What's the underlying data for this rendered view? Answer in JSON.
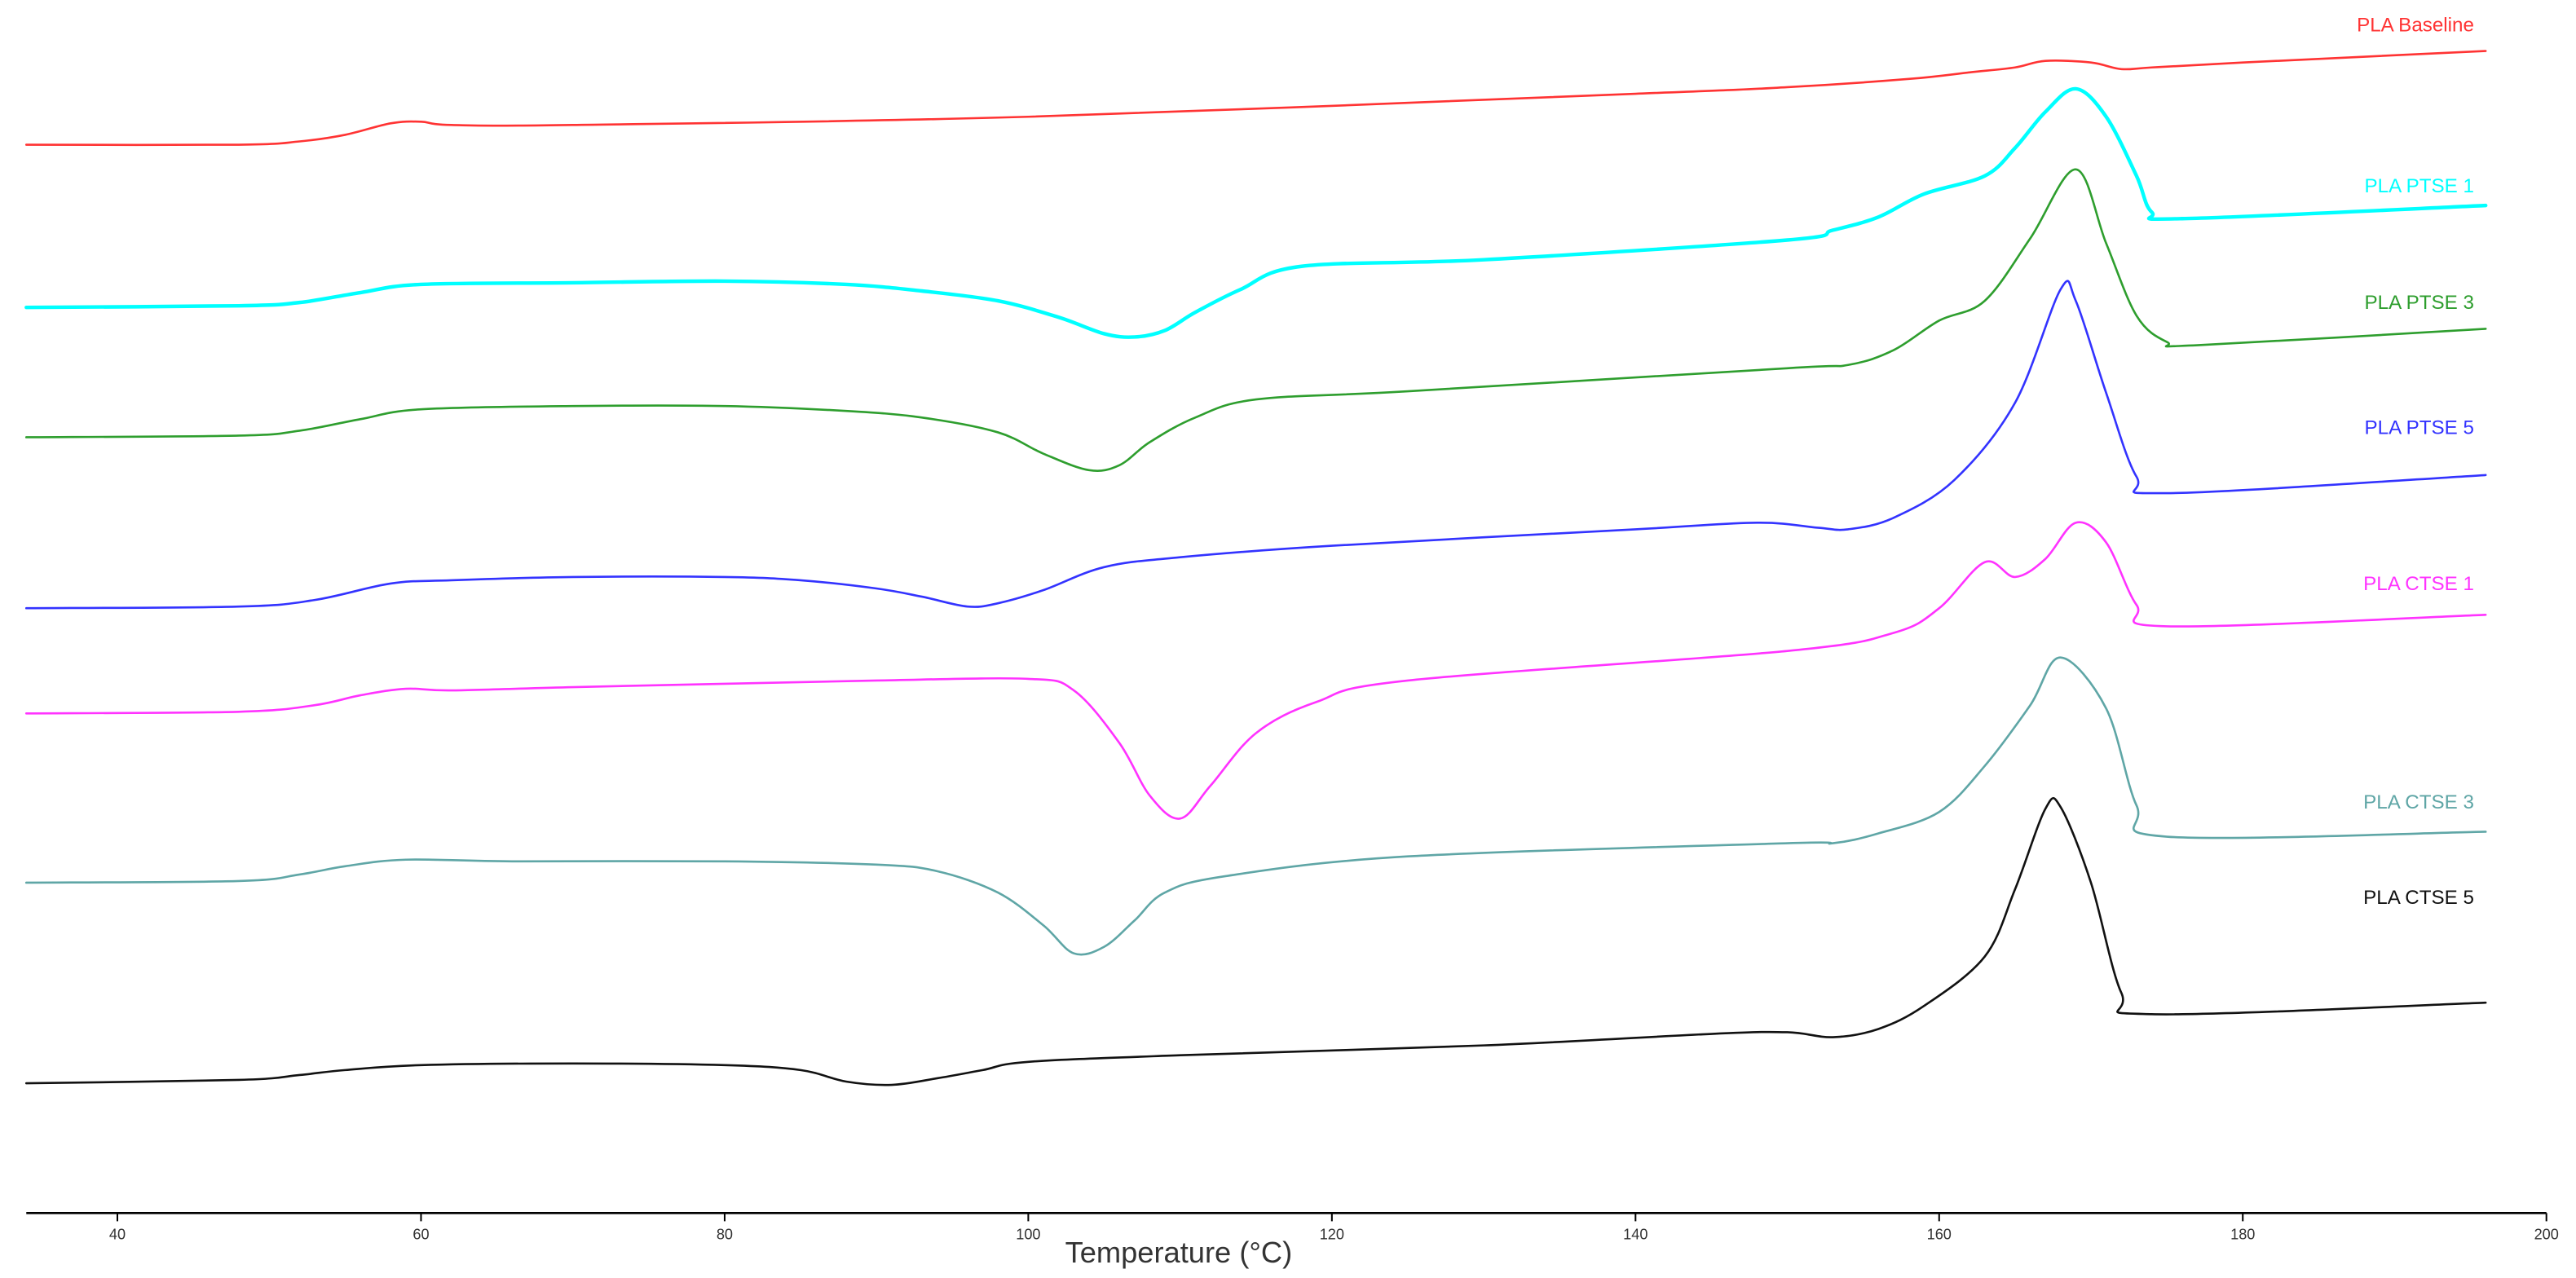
{
  "chart_data": {
    "type": "line",
    "title": "",
    "xlabel": "Temperature (°C)",
    "ylabel": "",
    "xlim": [
      34,
      200
    ],
    "xticks": [
      40,
      60,
      80,
      100,
      120,
      140,
      160,
      180,
      200
    ],
    "x_tick_labels": [
      "40",
      "60",
      "80",
      "100",
      "120",
      "140",
      "160",
      "180",
      "200"
    ],
    "grid": false,
    "legend": "inline labels at right end of each curve",
    "units": "relative heat flow (offset traces)",
    "series": [
      {
        "name": "PLA Baseline",
        "color": "#ff3333",
        "points": [
          [
            34,
            88
          ],
          [
            48,
            88
          ],
          [
            52,
            86
          ],
          [
            55,
            82
          ],
          [
            58,
            75
          ],
          [
            60,
            74
          ],
          [
            62,
            76
          ],
          [
            70,
            76
          ],
          [
            100,
            71
          ],
          [
            140,
            57
          ],
          [
            150,
            53
          ],
          [
            158,
            48
          ],
          [
            162,
            44
          ],
          [
            165,
            41
          ],
          [
            167,
            37
          ],
          [
            170,
            38
          ],
          [
            172,
            42
          ],
          [
            174,
            41
          ],
          [
            180,
            38
          ],
          [
            196,
            31
          ]
        ]
      },
      {
        "name": "PLA PTSE 1",
        "color": "#00ffff",
        "points": [
          [
            34,
            187
          ],
          [
            48,
            186
          ],
          [
            52,
            184
          ],
          [
            56,
            178
          ],
          [
            60,
            173
          ],
          [
            70,
            172
          ],
          [
            80,
            171
          ],
          [
            88,
            173
          ],
          [
            93,
            177
          ],
          [
            98,
            183
          ],
          [
            102,
            193
          ],
          [
            105,
            203
          ],
          [
            107,
            205
          ],
          [
            109,
            201
          ],
          [
            111,
            190
          ],
          [
            114,
            176
          ],
          [
            118,
            162
          ],
          [
            130,
            158
          ],
          [
            150,
            146
          ],
          [
            153,
            140
          ],
          [
            156,
            132
          ],
          [
            159,
            118
          ],
          [
            163,
            107
          ],
          [
            165,
            90
          ],
          [
            167,
            68
          ],
          [
            169,
            54
          ],
          [
            171,
            71
          ],
          [
            173,
            107
          ],
          [
            174,
            129
          ],
          [
            176,
            133
          ],
          [
            196,
            125
          ]
        ]
      },
      {
        "name": "PLA PTSE 3",
        "color": "#2e9e2e",
        "points": [
          [
            34,
            266
          ],
          [
            48,
            265
          ],
          [
            52,
            262
          ],
          [
            56,
            255
          ],
          [
            60,
            249
          ],
          [
            70,
            247
          ],
          [
            80,
            247
          ],
          [
            88,
            250
          ],
          [
            93,
            254
          ],
          [
            98,
            263
          ],
          [
            101,
            276
          ],
          [
            104,
            286
          ],
          [
            106,
            283
          ],
          [
            108,
            269
          ],
          [
            111,
            254
          ],
          [
            115,
            243
          ],
          [
            125,
            238
          ],
          [
            150,
            224
          ],
          [
            154,
            222
          ],
          [
            157,
            213
          ],
          [
            160,
            195
          ],
          [
            163,
            183
          ],
          [
            166,
            145
          ],
          [
            169,
            103
          ],
          [
            171,
            148
          ],
          [
            173,
            192
          ],
          [
            175,
            208
          ],
          [
            177,
            210
          ],
          [
            196,
            200
          ]
        ]
      },
      {
        "name": "PLA PTSE 5",
        "color": "#3333ff",
        "points": [
          [
            34,
            370
          ],
          [
            48,
            369
          ],
          [
            53,
            365
          ],
          [
            58,
            355
          ],
          [
            62,
            353
          ],
          [
            70,
            351
          ],
          [
            80,
            351
          ],
          [
            85,
            353
          ],
          [
            90,
            358
          ],
          [
            93,
            363
          ],
          [
            96,
            369
          ],
          [
            98,
            367
          ],
          [
            101,
            359
          ],
          [
            105,
            345
          ],
          [
            110,
            339
          ],
          [
            120,
            332
          ],
          [
            140,
            322
          ],
          [
            148,
            318
          ],
          [
            152,
            321
          ],
          [
            154,
            322
          ],
          [
            157,
            315
          ],
          [
            161,
            292
          ],
          [
            165,
            245
          ],
          [
            168,
            176
          ],
          [
            169,
            183
          ],
          [
            171,
            239
          ],
          [
            173,
            290
          ],
          [
            175,
            300
          ],
          [
            196,
            289
          ]
        ]
      },
      {
        "name": "PLA CTSE 1",
        "color": "#ff33ff",
        "points": [
          [
            34,
            434
          ],
          [
            48,
            433
          ],
          [
            53,
            429
          ],
          [
            56,
            423
          ],
          [
            59,
            419
          ],
          [
            62,
            420
          ],
          [
            70,
            418
          ],
          [
            80,
            416
          ],
          [
            90,
            414
          ],
          [
            100,
            413
          ],
          [
            103,
            420
          ],
          [
            106,
            452
          ],
          [
            108,
            484
          ],
          [
            110,
            498
          ],
          [
            112,
            478
          ],
          [
            115,
            446
          ],
          [
            119,
            427
          ],
          [
            125,
            414
          ],
          [
            150,
            396
          ],
          [
            157,
            385
          ],
          [
            160,
            370
          ],
          [
            163,
            342
          ],
          [
            165,
            351
          ],
          [
            167,
            340
          ],
          [
            169,
            318
          ],
          [
            171,
            330
          ],
          [
            173,
            368
          ],
          [
            175,
            381
          ],
          [
            196,
            374
          ]
        ]
      },
      {
        "name": "PLA CTSE 3",
        "color": "#5fa6a6",
        "points": [
          [
            34,
            537
          ],
          [
            48,
            536
          ],
          [
            52,
            532
          ],
          [
            55,
            527
          ],
          [
            59,
            523
          ],
          [
            66,
            524
          ],
          [
            80,
            524
          ],
          [
            90,
            526
          ],
          [
            94,
            530
          ],
          [
            98,
            543
          ],
          [
            101,
            563
          ],
          [
            103,
            580
          ],
          [
            105,
            576
          ],
          [
            107,
            560
          ],
          [
            109,
            543
          ],
          [
            113,
            533
          ],
          [
            125,
            521
          ],
          [
            150,
            513
          ],
          [
            153,
            513
          ],
          [
            156,
            507
          ],
          [
            160,
            494
          ],
          [
            163,
            466
          ],
          [
            166,
            429
          ],
          [
            168,
            400
          ],
          [
            171,
            431
          ],
          [
            173,
            490
          ],
          [
            175,
            509
          ],
          [
            196,
            506
          ]
        ]
      },
      {
        "name": "PLA CTSE 5",
        "color": "#111111",
        "points": [
          [
            34,
            659
          ],
          [
            48,
            657
          ],
          [
            52,
            654
          ],
          [
            55,
            651
          ],
          [
            60,
            648
          ],
          [
            70,
            647
          ],
          [
            80,
            648
          ],
          [
            85,
            651
          ],
          [
            88,
            658
          ],
          [
            91,
            660
          ],
          [
            94,
            656
          ],
          [
            97,
            651
          ],
          [
            100,
            646
          ],
          [
            110,
            642
          ],
          [
            130,
            636
          ],
          [
            145,
            629
          ],
          [
            150,
            628
          ],
          [
            153,
            631
          ],
          [
            156,
            626
          ],
          [
            159,
            612
          ],
          [
            163,
            582
          ],
          [
            165,
            541
          ],
          [
            167,
            492
          ],
          [
            168,
            491
          ],
          [
            170,
            537
          ],
          [
            172,
            604
          ],
          [
            174,
            617
          ],
          [
            196,
            610
          ]
        ]
      }
    ]
  }
}
